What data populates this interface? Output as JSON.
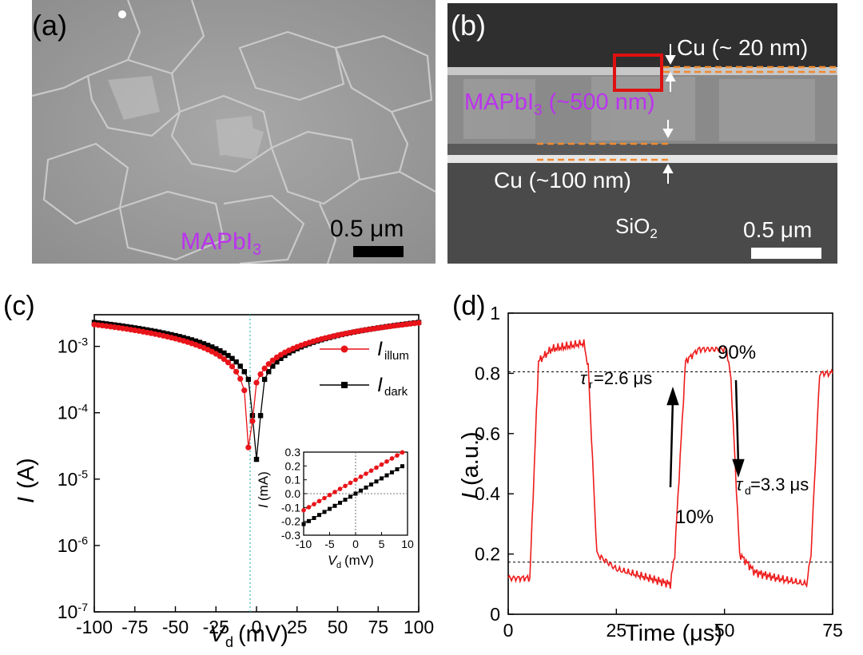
{
  "panel_a": {
    "label": "(a)",
    "material": "MAPbI",
    "material_sub": "3",
    "scale": "0.5 μm"
  },
  "panel_b": {
    "label": "(b)",
    "top_layer": "Cu (~ 20 nm)",
    "middle_layer": "MAPbI",
    "middle_layer_sub": "3",
    "middle_layer_thickness": "(~500 nm)",
    "bottom_layer": "Cu (~100 nm)",
    "substrate": "SiO",
    "substrate_sub": "2",
    "scale": "0.5 μm"
  },
  "panel_c": {
    "label": "(c)",
    "xlabel_sym": "V",
    "xlabel_sub": "d",
    "xlabel_unit": "(mV)",
    "ylabel_sym": "I",
    "ylabel_unit": "(A)",
    "legend_illum_sym": "I",
    "legend_illum_sub": "illum",
    "legend_dark_sym": "I",
    "legend_dark_sub": "dark",
    "inset_xlabel_sym": "V",
    "inset_xlabel_sub": "d",
    "inset_xlabel_unit": "(mV)",
    "inset_ylabel_sym": "I",
    "inset_ylabel_unit": "(mA)"
  },
  "panel_d": {
    "label": "(d)",
    "xlabel": "Time (μs)",
    "ylabel_sym": "I",
    "ylabel_unit": "(a.u.)",
    "level_90": "90%",
    "level_10": "10%",
    "tau_r_sym": "τ",
    "tau_r_sub": "r",
    "tau_r_val": "=2.6 μs",
    "tau_d_sym": "τ",
    "tau_d_sub": "d",
    "tau_d_val": "=3.3 μs"
  },
  "colors": {
    "illum": "#e8141a",
    "dark": "#000000",
    "trace": "#ee1c1c",
    "purple": "#bb33ee",
    "box": "#e01010",
    "orange": "#f08a30"
  },
  "chart_data": [
    {
      "type": "scatter",
      "panel": "c",
      "log_y": true,
      "xlim": [
        -100,
        100
      ],
      "ylim": [
        1e-07,
        0.003
      ],
      "x_ticks": [
        "-100",
        "-75",
        "-50",
        "-25",
        "0",
        "25",
        "50",
        "75",
        "100"
      ],
      "y_ticks": [
        "10-7",
        "10-6",
        "10-5",
        "10-4",
        "10-3"
      ],
      "series": [
        {
          "name": "I_illum",
          "x0": -4.5,
          "i_at_100": 0.0022
        },
        {
          "name": "I_dark",
          "x0": 0,
          "i_at_100": 0.0023
        }
      ]
    },
    {
      "type": "scatter",
      "panel": "c-inset",
      "xlim": [
        -10,
        10
      ],
      "ylim": [
        -0.3,
        0.3
      ],
      "x_ticks": [
        "-10",
        "-5",
        "0",
        "5",
        "10"
      ],
      "y_ticks": [
        "0.3",
        "0.2",
        "0.1",
        "0.0",
        "-0.1",
        "-0.2",
        "-0.3"
      ],
      "series": [
        {
          "name": "I_illum",
          "slope": 0.022,
          "intercept": 0.1
        },
        {
          "name": "I_dark",
          "slope": 0.022,
          "intercept": 0.0
        }
      ]
    },
    {
      "type": "line",
      "panel": "d",
      "xlim": [
        0,
        75
      ],
      "ylim": [
        0,
        1
      ],
      "x_ticks": [
        "0",
        "25",
        "50",
        "75"
      ],
      "y_ticks": [
        "0",
        "0.2",
        "0.4",
        "0.6",
        "0.8",
        "1"
      ],
      "levels": {
        "high_90": 0.805,
        "low_10": 0.173
      },
      "series": [
        {
          "name": "I",
          "segments": [
            [
              0,
              0.12
            ],
            [
              5,
              0.12
            ],
            [
              7,
              0.84
            ],
            [
              10,
              0.88
            ],
            [
              17.5,
              0.9
            ],
            [
              18.5,
              0.82
            ],
            [
              20.5,
              0.2
            ],
            [
              25,
              0.15
            ],
            [
              30,
              0.13
            ],
            [
              37.5,
              0.1
            ],
            [
              38.5,
              0.2
            ],
            [
              41,
              0.84
            ],
            [
              44,
              0.88
            ],
            [
              50.5,
              0.88
            ],
            [
              51.5,
              0.78
            ],
            [
              53.5,
              0.2
            ],
            [
              57,
              0.14
            ],
            [
              62,
              0.12
            ],
            [
              69,
              0.1
            ],
            [
              70,
              0.2
            ],
            [
              72,
              0.8
            ],
            [
              75,
              0.8
            ]
          ]
        }
      ]
    }
  ]
}
